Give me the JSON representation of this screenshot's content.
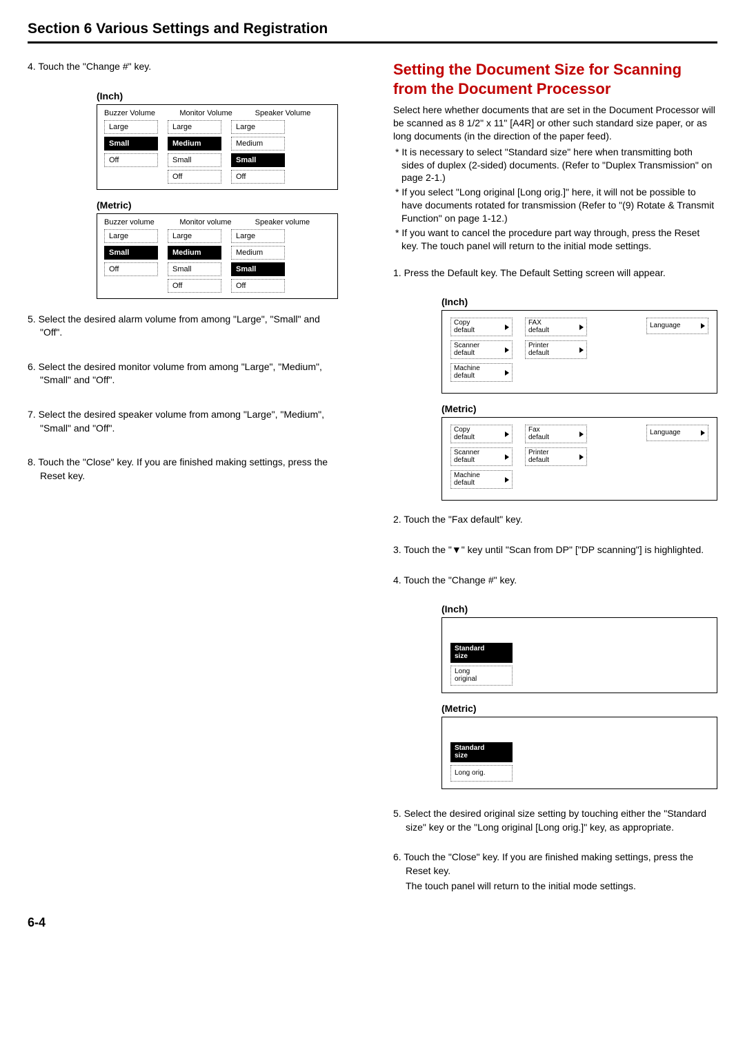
{
  "header": {
    "title": "Section 6  Various Settings and Registration"
  },
  "left": {
    "step4": "4. Touch the \"Change #\" key.",
    "label_inch": "(Inch)",
    "label_metric": "(Metric)",
    "vol_headers_inch": {
      "buzzer": "Buzzer Volume",
      "monitor": "Monitor Volume",
      "speaker": "Speaker Volume"
    },
    "vol_headers_metric": {
      "buzzer": "Buzzer volume",
      "monitor": "Monitor volume",
      "speaker": "Speaker volume"
    },
    "opts": {
      "large": "Large",
      "medium": "Medium",
      "small": "Small",
      "off": "Off"
    },
    "step5": "5. Select the desired alarm volume from among \"Large\", \"Small\" and \"Off\".",
    "step6": "6. Select the desired monitor volume from among \"Large\", \"Medium\", \"Small\" and \"Off\".",
    "step7": "7. Select the desired speaker volume from among \"Large\", \"Medium\", \"Small\" and \"Off\".",
    "step8": "8. Touch the \"Close\" key. If you are finished making settings, press the Reset key."
  },
  "right": {
    "title": "Setting the Document Size for Scanning from the Document Processor",
    "intro": "Select here whether documents that are set in the Document Processor will be scanned as 8 1/2\" x 11\" [A4R] or other such standard size paper, or as long documents (in the direction of the paper feed).",
    "note1": "* It is necessary to select \"Standard size\" here when transmitting both sides of duplex (2-sided) documents. (Refer to \"Duplex Transmission\" on page 2-1.)",
    "note2": "* If you select \"Long original [Long orig.]\" here, it will not be possible to have documents rotated for transmission (Refer to \"(9) Rotate & Transmit Function\" on page 1-12.)",
    "note3": "* If you want to cancel the procedure part way through, press the Reset key. The touch panel will return to the initial mode settings.",
    "step1": "1. Press the Default key. The Default Setting screen will appear.",
    "label_inch": "(Inch)",
    "label_metric": "(Metric)",
    "def_inch": {
      "copy": "Copy\ndefault",
      "fax": "FAX\ndefault",
      "lang": "Language",
      "scanner": "Scanner\ndefault",
      "printer": "Printer\ndefault",
      "machine": "Machine\ndefault"
    },
    "def_metric": {
      "copy": "Copy\ndefault",
      "fax": "Fax\ndefault",
      "lang": "Language",
      "scanner": "Scanner\ndefault",
      "printer": "Printer\ndefault",
      "machine": "Machine\ndefault"
    },
    "step2": "2. Touch the \"Fax default\" key.",
    "step3": "3. Touch the \"▼\" key until \"Scan from DP\" [\"DP scanning\"] is highlighted.",
    "step4": "4. Touch the \"Change #\" key.",
    "size_inch": {
      "standard": "Standard\nsize",
      "long": "Long\noriginal"
    },
    "size_metric": {
      "standard": "Standard\nsize",
      "long": "Long orig."
    },
    "step5": "5. Select the desired original size setting by touching either the \"Standard size\" key or the \"Long original [Long orig.]\" key, as appropriate.",
    "step6a": "6. Touch the \"Close\" key. If you are finished making settings, press the Reset key.",
    "step6b": "The touch panel will return to the initial mode settings."
  },
  "page_num": "6-4"
}
